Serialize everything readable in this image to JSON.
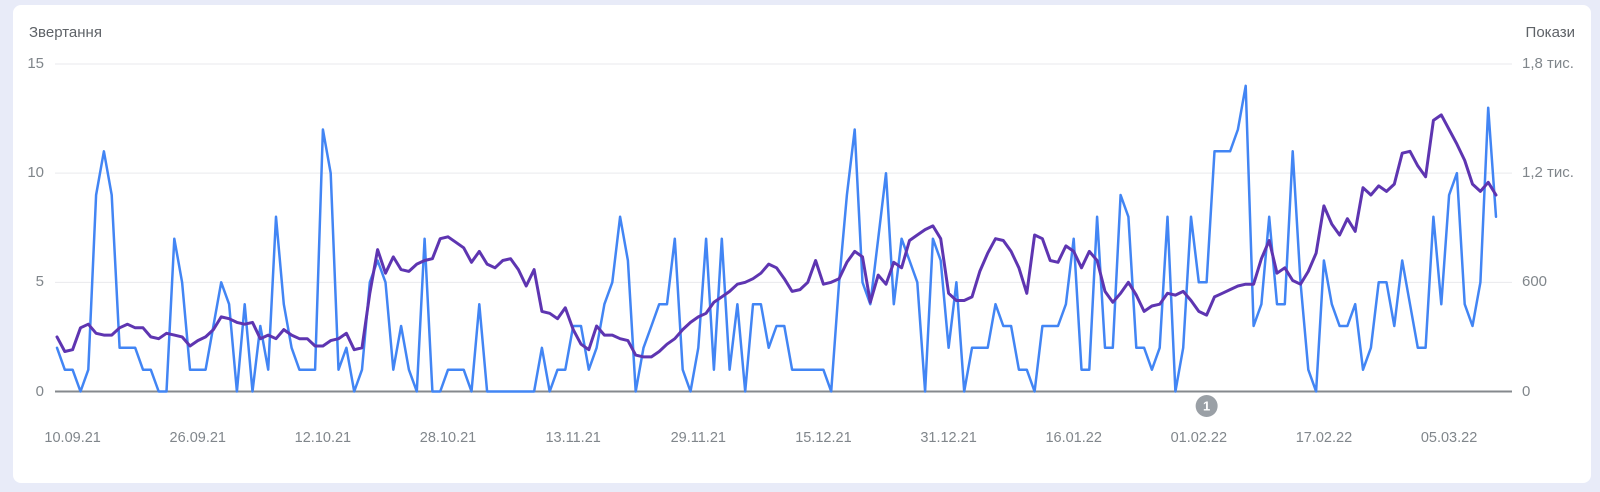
{
  "page_background": "#e8ebf8",
  "card_background": "#ffffff",
  "left_axis_title": "Звертання",
  "right_axis_title": "Покази",
  "annotation": {
    "label": "1",
    "day_index": 147
  },
  "chart_data": {
    "type": "line",
    "grid": true,
    "legend_position": "none",
    "left_axis": {
      "title": "Звертання",
      "range": [
        0,
        15
      ],
      "tick_values": [
        0,
        5,
        10,
        15
      ],
      "tick_labels": [
        "0",
        "5",
        "10",
        "15"
      ]
    },
    "right_axis": {
      "title": "Покази",
      "range": [
        0,
        1800
      ],
      "tick_values": [
        0,
        600,
        1200,
        1800
      ],
      "tick_labels": [
        "0",
        "600",
        "1,2 тис.",
        "1,8 тис."
      ]
    },
    "x_ticks": [
      {
        "label": "10.09.21",
        "day_index": 2
      },
      {
        "label": "26.09.21",
        "day_index": 18
      },
      {
        "label": "12.10.21",
        "day_index": 34
      },
      {
        "label": "28.10.21",
        "day_index": 50
      },
      {
        "label": "13.11.21",
        "day_index": 66
      },
      {
        "label": "29.11.21",
        "day_index": 82
      },
      {
        "label": "15.12.21",
        "day_index": 98
      },
      {
        "label": "31.12.21",
        "day_index": 114
      },
      {
        "label": "16.01.22",
        "day_index": 130
      },
      {
        "label": "01.02.22",
        "day_index": 146
      },
      {
        "label": "17.02.22",
        "day_index": 162
      },
      {
        "label": "05.03.22",
        "day_index": 178
      }
    ],
    "series": [
      {
        "name": "Звертання",
        "axis": "left",
        "color": "#4285f4",
        "stroke_width": 2.5,
        "values": [
          2,
          1,
          1,
          0,
          1,
          9,
          11,
          9,
          2,
          2,
          2,
          1,
          1,
          0,
          0,
          7,
          5,
          1,
          1,
          1,
          3,
          5,
          4,
          0,
          4,
          0,
          3,
          1,
          8,
          4,
          2,
          1,
          1,
          1,
          12,
          10,
          1,
          2,
          0,
          1,
          5,
          6,
          5,
          1,
          3,
          1,
          0,
          7,
          0,
          0,
          1,
          1,
          1,
          0,
          4,
          0,
          0,
          0,
          0,
          0,
          0,
          0,
          2,
          0,
          1,
          1,
          3,
          3,
          1,
          2,
          4,
          5,
          8,
          6,
          0,
          2,
          3,
          4,
          4,
          7,
          1,
          0,
          2,
          7,
          1,
          7,
          1,
          4,
          0,
          4,
          4,
          2,
          3,
          3,
          1,
          1,
          1,
          1,
          1,
          0,
          5,
          9,
          12,
          5,
          4,
          7,
          10,
          4,
          7,
          6,
          5,
          0,
          7,
          6,
          2,
          5,
          0,
          2,
          2,
          2,
          4,
          3,
          3,
          1,
          1,
          0,
          3,
          3,
          3,
          4,
          7,
          1,
          1,
          8,
          2,
          2,
          9,
          8,
          2,
          2,
          1,
          2,
          8,
          0,
          2,
          8,
          5,
          5,
          11,
          11,
          11,
          12,
          14,
          3,
          4,
          8,
          4,
          4,
          11,
          5,
          1,
          0,
          6,
          4,
          3,
          3,
          4,
          1,
          2,
          5,
          5,
          3,
          6,
          4,
          2,
          2,
          8,
          4,
          9,
          10,
          4,
          3,
          5,
          13,
          8
        ]
      },
      {
        "name": "Покази",
        "axis": "right",
        "color": "#5e35b1",
        "stroke_width": 3,
        "values": [
          300,
          220,
          230,
          350,
          370,
          320,
          310,
          310,
          350,
          370,
          350,
          350,
          300,
          290,
          320,
          310,
          300,
          250,
          280,
          300,
          340,
          410,
          400,
          380,
          370,
          380,
          290,
          310,
          290,
          340,
          310,
          290,
          290,
          250,
          250,
          280,
          290,
          320,
          230,
          240,
          540,
          780,
          650,
          740,
          670,
          660,
          700,
          720,
          730,
          840,
          850,
          820,
          790,
          710,
          770,
          700,
          680,
          720,
          730,
          670,
          580,
          670,
          440,
          430,
          400,
          460,
          340,
          260,
          230,
          360,
          310,
          310,
          290,
          280,
          200,
          190,
          190,
          220,
          260,
          290,
          340,
          380,
          410,
          430,
          490,
          520,
          550,
          590,
          600,
          620,
          650,
          700,
          680,
          620,
          550,
          560,
          600,
          720,
          590,
          600,
          620,
          710,
          770,
          740,
          490,
          640,
          590,
          710,
          680,
          830,
          860,
          890,
          910,
          840,
          540,
          500,
          500,
          520,
          660,
          760,
          840,
          830,
          770,
          680,
          540,
          860,
          840,
          720,
          710,
          800,
          770,
          680,
          770,
          720,
          550,
          490,
          540,
          600,
          530,
          440,
          470,
          480,
          540,
          530,
          550,
          500,
          440,
          420,
          520,
          540,
          560,
          580,
          590,
          590,
          730,
          830,
          650,
          680,
          610,
          590,
          660,
          760,
          1020,
          920,
          860,
          950,
          880,
          1120,
          1080,
          1130,
          1100,
          1140,
          1310,
          1320,
          1240,
          1180,
          1490,
          1520,
          1440,
          1360,
          1270,
          1140,
          1100,
          1150,
          1080
        ]
      }
    ]
  }
}
